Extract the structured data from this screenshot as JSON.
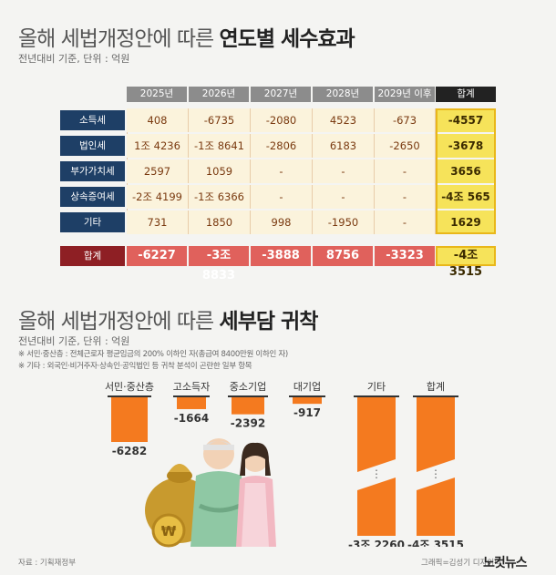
{
  "section1": {
    "title_normal": "올해 세법개정안에 따른",
    "title_bold": "연도별 세수효과",
    "subtitle": "전년대비 기준, 단위 : 억원"
  },
  "section2": {
    "title_normal": "올해 세법개정안에 따른",
    "title_bold": "세부담 귀착",
    "subtitle": "전년대비 기준, 단위 : 억원",
    "note1": "※ 서민·중산층 : 전체근로자 평균임금의 200% 이하인 자(총급여 8400만원 이하인 자)",
    "note2": "※ 기타 : 외국인·비거주자·상속인·공익법인 등 귀착 분석이 곤란한 일부 항목"
  },
  "chart_data": [
    {
      "type": "table",
      "columns": [
        "2025년",
        "2026년",
        "2027년",
        "2028년",
        "2029년 이후",
        "합계"
      ],
      "rows": [
        {
          "label": "소득세",
          "cells": [
            "408",
            "-6735",
            "-2080",
            "4523",
            "-673",
            "-4557"
          ]
        },
        {
          "label": "법인세",
          "cells": [
            "1조 4236",
            "-1조 8641",
            "-2806",
            "6183",
            "-2650",
            "-3678"
          ]
        },
        {
          "label": "부가가치세",
          "cells": [
            "2597",
            "1059",
            "-",
            "-",
            "-",
            "3656"
          ]
        },
        {
          "label": "상속증여세",
          "cells": [
            "-2조 4199",
            "-1조 6366",
            "-",
            "-",
            "-",
            "-4조 565"
          ]
        },
        {
          "label": "기타",
          "cells": [
            "731",
            "1850",
            "998",
            "-1950",
            "-",
            "1629"
          ]
        }
      ],
      "total_row": {
        "label": "합계",
        "cells": [
          "-6227",
          "-3조 8833",
          "-3888",
          "8756",
          "-3323",
          "-4조 3515"
        ]
      }
    },
    {
      "type": "bar",
      "categories": [
        "서민·중산층",
        "고소득자",
        "중소기업",
        "대기업",
        "기타",
        "합계"
      ],
      "values": [
        -6282,
        -1664,
        -2392,
        -917,
        -32260,
        -43515
      ],
      "value_labels": [
        "-6282",
        "-1664",
        "-2392",
        "-917",
        "-3조 2260",
        "-4조 3515"
      ],
      "broken_axis": [
        false,
        false,
        false,
        false,
        true,
        true
      ],
      "colors": {
        "bar": "#f47a1f",
        "bar_dark": "#d95f0e"
      }
    }
  ],
  "footer": {
    "source": "자료 : 기획재정부",
    "credit": "그래픽=김성기 디자이너",
    "logo": "노컷뉴스"
  }
}
